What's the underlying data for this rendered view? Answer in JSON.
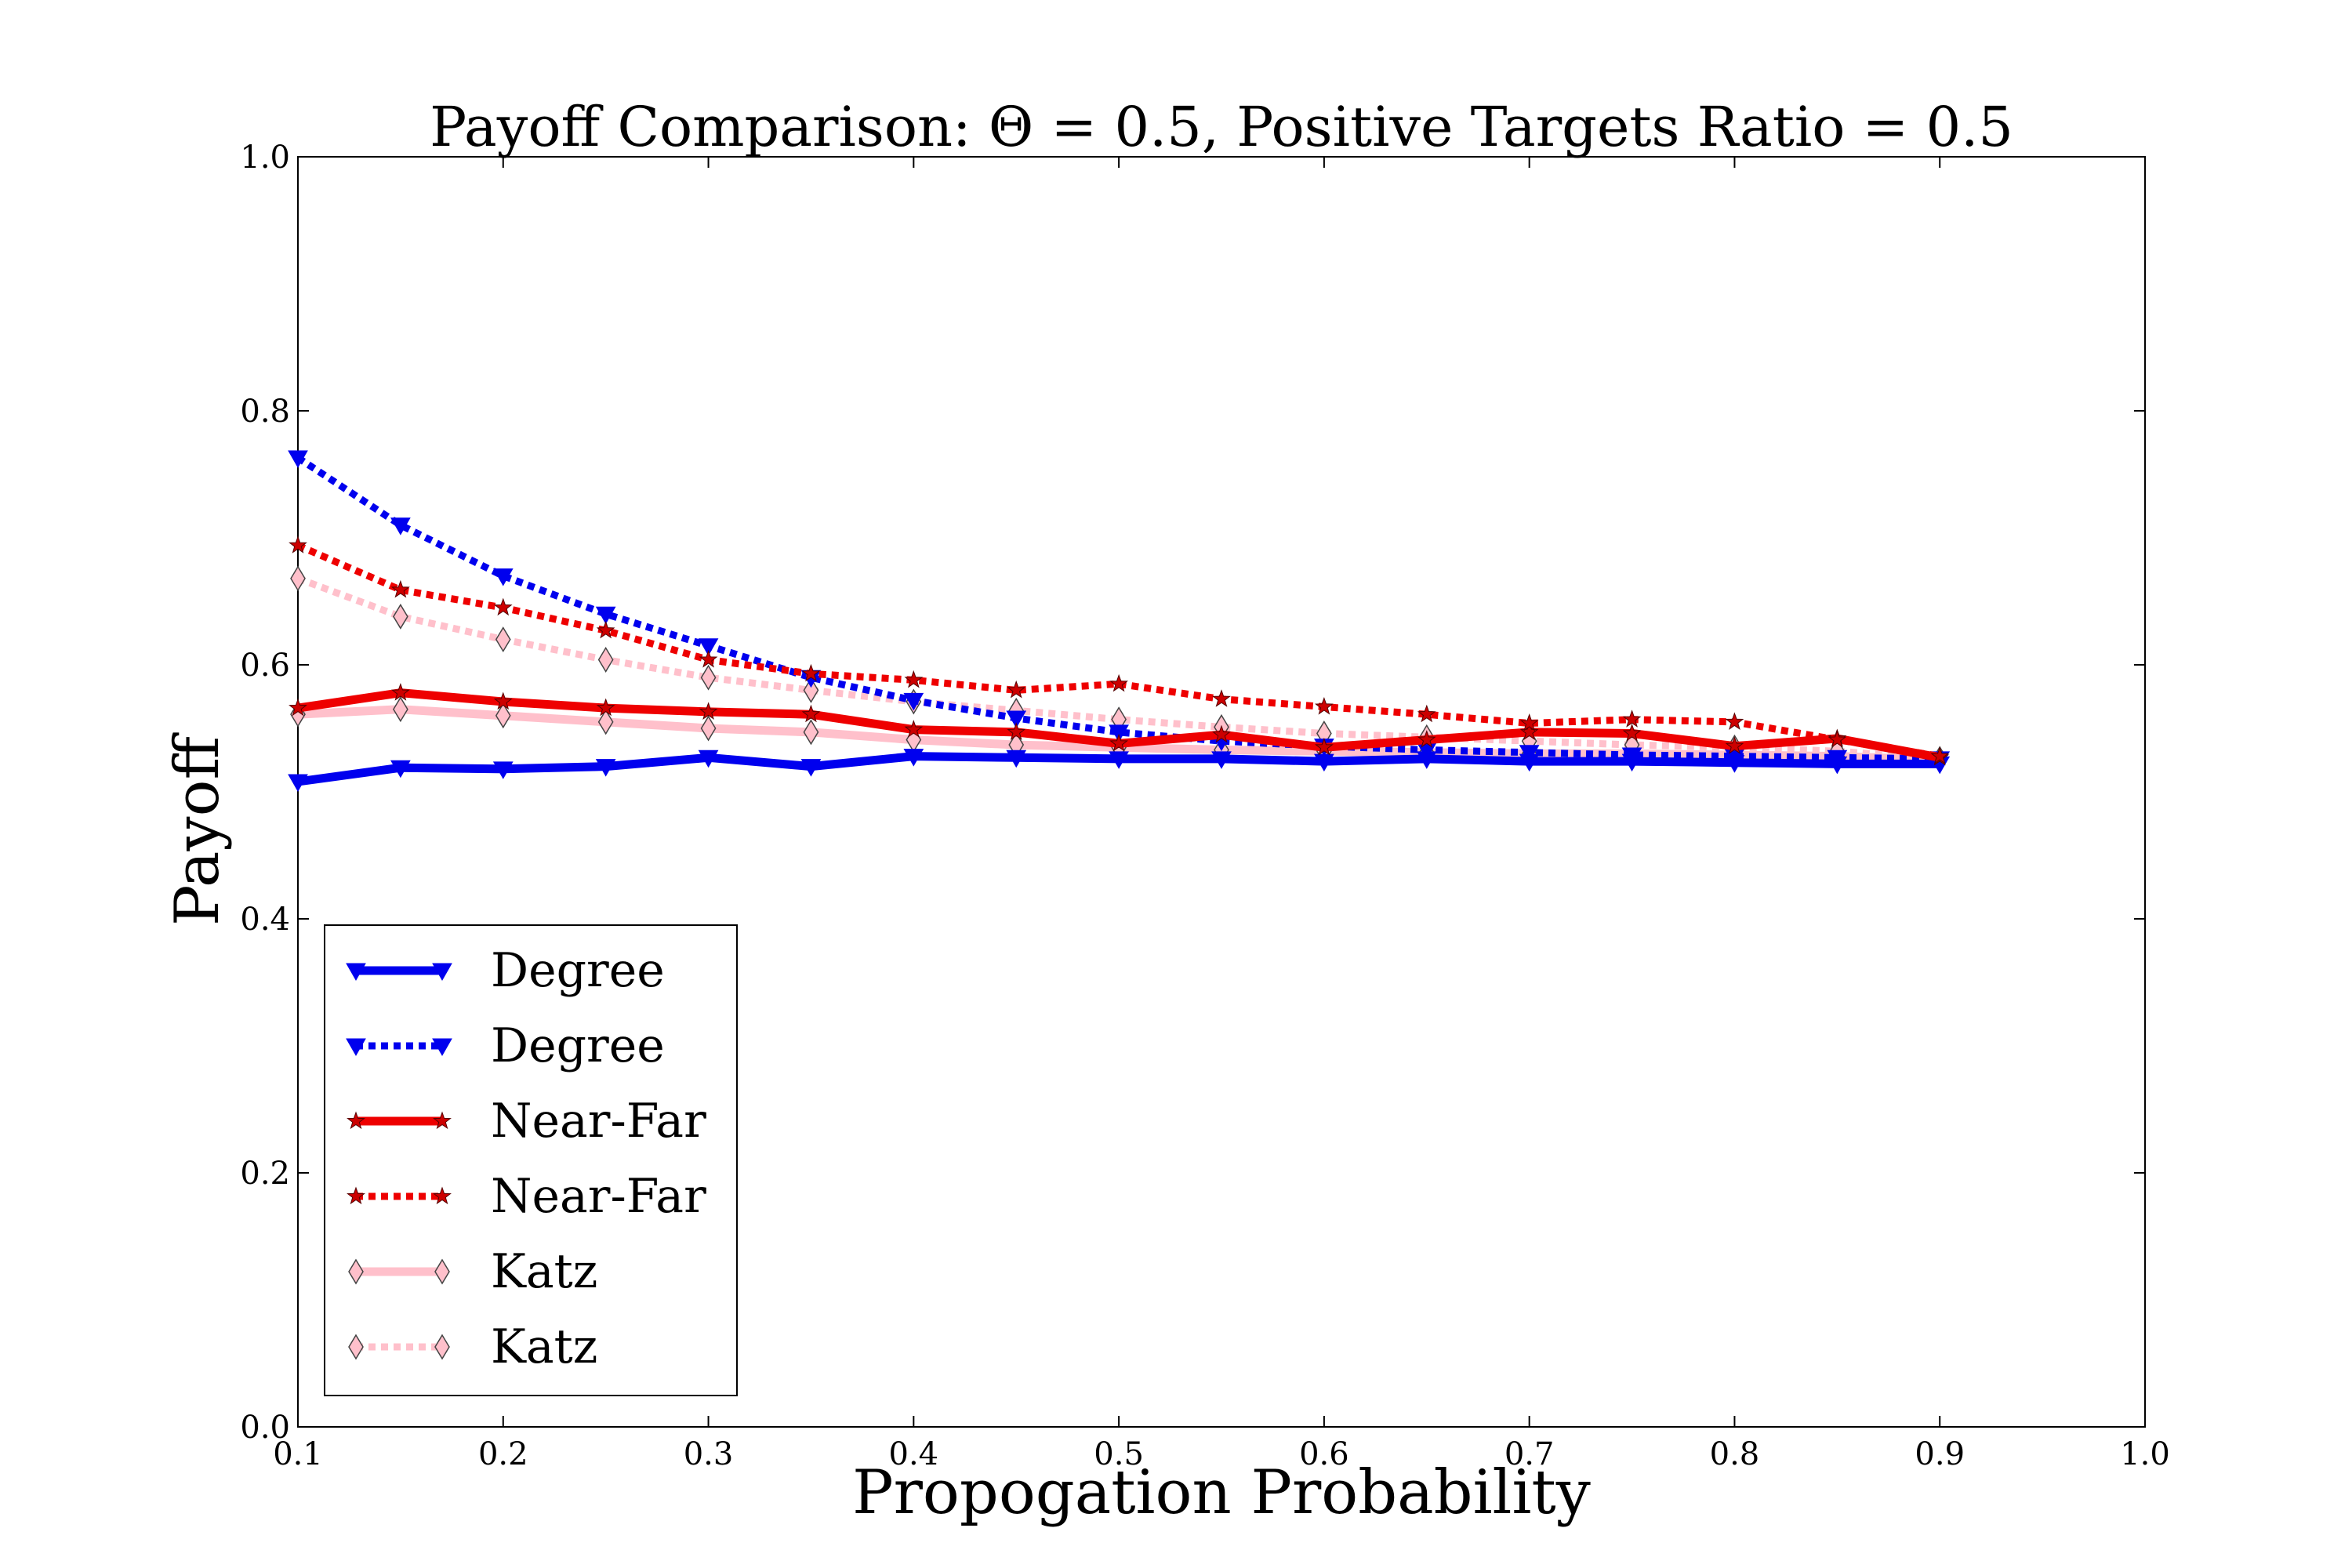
{
  "chart_data": {
    "type": "line",
    "title": "Payoff Comparison: Θ = 0.5, Positive Targets Ratio = 0.5",
    "xlabel": "Propogation Probability",
    "ylabel": "Payoff",
    "xlim": [
      0.1,
      1.0
    ],
    "ylim": [
      0.0,
      1.0
    ],
    "xticks": [
      "0.1",
      "0.2",
      "0.3",
      "0.4",
      "0.5",
      "0.6",
      "0.7",
      "0.8",
      "0.9",
      "1.0"
    ],
    "yticks": [
      "0.0",
      "0.2",
      "0.4",
      "0.6",
      "0.8",
      "1.0"
    ],
    "grid": false,
    "legend_position": "lower-left",
    "x": [
      0.1,
      0.15,
      0.2,
      0.25,
      0.3,
      0.35,
      0.4,
      0.45,
      0.5,
      0.55,
      0.6,
      0.65,
      0.7,
      0.75,
      0.8,
      0.85,
      0.9
    ],
    "series": [
      {
        "name": "Degree",
        "color": "#0000ee",
        "style": "solid",
        "marker": "triangle-down",
        "values": [
          0.508,
          0.519,
          0.518,
          0.52,
          0.527,
          0.52,
          0.528,
          0.527,
          0.526,
          0.526,
          0.524,
          0.526,
          0.524,
          0.524,
          0.523,
          0.522,
          0.522
        ]
      },
      {
        "name": "Degree",
        "color": "#0000ee",
        "style": "dotted",
        "marker": "triangle-down",
        "values": [
          0.763,
          0.71,
          0.67,
          0.64,
          0.615,
          0.59,
          0.572,
          0.558,
          0.547,
          0.54,
          0.536,
          0.533,
          0.531,
          0.529,
          0.528,
          0.527,
          0.526
        ]
      },
      {
        "name": "Near-Far",
        "color": "#ee0000",
        "style": "solid",
        "marker": "star",
        "values": [
          0.566,
          0.578,
          0.571,
          0.566,
          0.563,
          0.561,
          0.549,
          0.547,
          0.538,
          0.545,
          0.535,
          0.541,
          0.547,
          0.546,
          0.536,
          0.542,
          0.527
        ]
      },
      {
        "name": "Near-Far",
        "color": "#ee0000",
        "style": "dotted",
        "marker": "star",
        "values": [
          0.694,
          0.659,
          0.645,
          0.627,
          0.604,
          0.593,
          0.588,
          0.58,
          0.585,
          0.573,
          0.567,
          0.561,
          0.554,
          0.557,
          0.555,
          0.541,
          0.528
        ]
      },
      {
        "name": "Katz",
        "color": "#ffc0cb",
        "style": "solid",
        "marker": "thin-diamond",
        "values": [
          0.561,
          0.565,
          0.56,
          0.555,
          0.55,
          0.547,
          0.541,
          0.537,
          0.535,
          0.533,
          0.532,
          0.531,
          0.53,
          0.53,
          0.529,
          0.528,
          0.525
        ]
      },
      {
        "name": "Katz",
        "color": "#ffc0cb",
        "style": "dotted",
        "marker": "thin-diamond",
        "values": [
          0.668,
          0.638,
          0.62,
          0.604,
          0.59,
          0.58,
          0.571,
          0.564,
          0.557,
          0.551,
          0.546,
          0.543,
          0.54,
          0.537,
          0.535,
          0.532,
          0.526
        ]
      }
    ]
  }
}
